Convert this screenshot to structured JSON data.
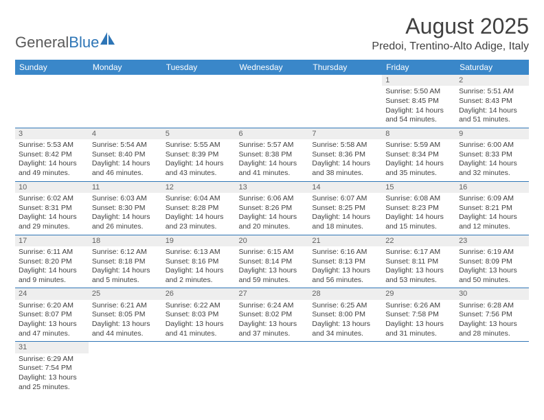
{
  "logo": {
    "text1": "General",
    "text2": "Blue"
  },
  "header": {
    "title": "August 2025",
    "location": "Predoi, Trentino-Alto Adige, Italy"
  },
  "colors": {
    "header_bar": "#3a87c9",
    "daynum_bg": "#eeeeee",
    "rule": "#2e75b6",
    "text": "#404040",
    "logo_grey": "#5a5a5a",
    "logo_blue": "#2e75b6"
  },
  "day_names": [
    "Sunday",
    "Monday",
    "Tuesday",
    "Wednesday",
    "Thursday",
    "Friday",
    "Saturday"
  ],
  "weeks": [
    [
      {
        "n": "",
        "t": ""
      },
      {
        "n": "",
        "t": ""
      },
      {
        "n": "",
        "t": ""
      },
      {
        "n": "",
        "t": ""
      },
      {
        "n": "",
        "t": ""
      },
      {
        "n": "1",
        "t": "Sunrise: 5:50 AM\nSunset: 8:45 PM\nDaylight: 14 hours and 54 minutes."
      },
      {
        "n": "2",
        "t": "Sunrise: 5:51 AM\nSunset: 8:43 PM\nDaylight: 14 hours and 51 minutes."
      }
    ],
    [
      {
        "n": "3",
        "t": "Sunrise: 5:53 AM\nSunset: 8:42 PM\nDaylight: 14 hours and 49 minutes."
      },
      {
        "n": "4",
        "t": "Sunrise: 5:54 AM\nSunset: 8:40 PM\nDaylight: 14 hours and 46 minutes."
      },
      {
        "n": "5",
        "t": "Sunrise: 5:55 AM\nSunset: 8:39 PM\nDaylight: 14 hours and 43 minutes."
      },
      {
        "n": "6",
        "t": "Sunrise: 5:57 AM\nSunset: 8:38 PM\nDaylight: 14 hours and 41 minutes."
      },
      {
        "n": "7",
        "t": "Sunrise: 5:58 AM\nSunset: 8:36 PM\nDaylight: 14 hours and 38 minutes."
      },
      {
        "n": "8",
        "t": "Sunrise: 5:59 AM\nSunset: 8:34 PM\nDaylight: 14 hours and 35 minutes."
      },
      {
        "n": "9",
        "t": "Sunrise: 6:00 AM\nSunset: 8:33 PM\nDaylight: 14 hours and 32 minutes."
      }
    ],
    [
      {
        "n": "10",
        "t": "Sunrise: 6:02 AM\nSunset: 8:31 PM\nDaylight: 14 hours and 29 minutes."
      },
      {
        "n": "11",
        "t": "Sunrise: 6:03 AM\nSunset: 8:30 PM\nDaylight: 14 hours and 26 minutes."
      },
      {
        "n": "12",
        "t": "Sunrise: 6:04 AM\nSunset: 8:28 PM\nDaylight: 14 hours and 23 minutes."
      },
      {
        "n": "13",
        "t": "Sunrise: 6:06 AM\nSunset: 8:26 PM\nDaylight: 14 hours and 20 minutes."
      },
      {
        "n": "14",
        "t": "Sunrise: 6:07 AM\nSunset: 8:25 PM\nDaylight: 14 hours and 18 minutes."
      },
      {
        "n": "15",
        "t": "Sunrise: 6:08 AM\nSunset: 8:23 PM\nDaylight: 14 hours and 15 minutes."
      },
      {
        "n": "16",
        "t": "Sunrise: 6:09 AM\nSunset: 8:21 PM\nDaylight: 14 hours and 12 minutes."
      }
    ],
    [
      {
        "n": "17",
        "t": "Sunrise: 6:11 AM\nSunset: 8:20 PM\nDaylight: 14 hours and 9 minutes."
      },
      {
        "n": "18",
        "t": "Sunrise: 6:12 AM\nSunset: 8:18 PM\nDaylight: 14 hours and 5 minutes."
      },
      {
        "n": "19",
        "t": "Sunrise: 6:13 AM\nSunset: 8:16 PM\nDaylight: 14 hours and 2 minutes."
      },
      {
        "n": "20",
        "t": "Sunrise: 6:15 AM\nSunset: 8:14 PM\nDaylight: 13 hours and 59 minutes."
      },
      {
        "n": "21",
        "t": "Sunrise: 6:16 AM\nSunset: 8:13 PM\nDaylight: 13 hours and 56 minutes."
      },
      {
        "n": "22",
        "t": "Sunrise: 6:17 AM\nSunset: 8:11 PM\nDaylight: 13 hours and 53 minutes."
      },
      {
        "n": "23",
        "t": "Sunrise: 6:19 AM\nSunset: 8:09 PM\nDaylight: 13 hours and 50 minutes."
      }
    ],
    [
      {
        "n": "24",
        "t": "Sunrise: 6:20 AM\nSunset: 8:07 PM\nDaylight: 13 hours and 47 minutes."
      },
      {
        "n": "25",
        "t": "Sunrise: 6:21 AM\nSunset: 8:05 PM\nDaylight: 13 hours and 44 minutes."
      },
      {
        "n": "26",
        "t": "Sunrise: 6:22 AM\nSunset: 8:03 PM\nDaylight: 13 hours and 41 minutes."
      },
      {
        "n": "27",
        "t": "Sunrise: 6:24 AM\nSunset: 8:02 PM\nDaylight: 13 hours and 37 minutes."
      },
      {
        "n": "28",
        "t": "Sunrise: 6:25 AM\nSunset: 8:00 PM\nDaylight: 13 hours and 34 minutes."
      },
      {
        "n": "29",
        "t": "Sunrise: 6:26 AM\nSunset: 7:58 PM\nDaylight: 13 hours and 31 minutes."
      },
      {
        "n": "30",
        "t": "Sunrise: 6:28 AM\nSunset: 7:56 PM\nDaylight: 13 hours and 28 minutes."
      }
    ],
    [
      {
        "n": "31",
        "t": "Sunrise: 6:29 AM\nSunset: 7:54 PM\nDaylight: 13 hours and 25 minutes."
      },
      {
        "n": "",
        "t": ""
      },
      {
        "n": "",
        "t": ""
      },
      {
        "n": "",
        "t": ""
      },
      {
        "n": "",
        "t": ""
      },
      {
        "n": "",
        "t": ""
      },
      {
        "n": "",
        "t": ""
      }
    ]
  ]
}
